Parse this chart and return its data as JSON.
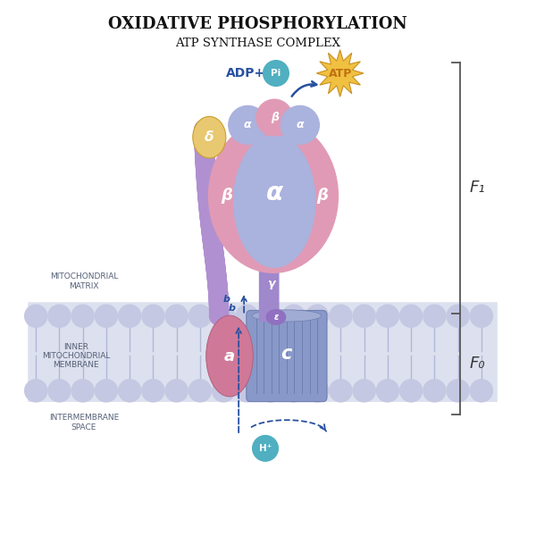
{
  "title1": "OXIDATIVE PHOSPHORYLATION",
  "title2": "ATP SYNTHASE COMPLEX",
  "bg_color": "#ffffff",
  "membrane_color": "#dde0ee",
  "membrane_bubble_color": "#c5c8e2",
  "f1_label": "F₁",
  "f0_label": "F₀",
  "labels": {
    "alpha_main": "α",
    "beta_left": "β",
    "beta_right": "β",
    "alpha_top_left": "α",
    "alpha_top_right": "α",
    "beta_top": "β",
    "delta": "δ",
    "gamma": "γ",
    "epsilon": "ε",
    "a_subunit": "a",
    "b_subunit": "b",
    "c_subunit": "c",
    "mito_matrix": "MITOCHONDRIAL\nMATRIX",
    "inner_membrane": "INNER\nMITOCHONDRIAL\nMEMBRANE",
    "intermembrane": "INTERMEMBRANE\nSPACE"
  },
  "colors": {
    "alpha_blue": "#aab2de",
    "pink_outer": "#e09ab5",
    "delta_gold": "#e8c870",
    "stalk_purple": "#b090d0",
    "c_ring_blue": "#8898c8",
    "c_ring_dark": "#7080b0",
    "a_subunit_pink": "#d07898",
    "gamma_purple": "#9878c8",
    "epsilon_small": "#9070c0",
    "adp_text": "#2850a0",
    "pi_circle": "#50afc0",
    "atp_text": "#c07010",
    "atp_star": "#f0c040",
    "h_circle": "#50afc0",
    "arrow_color": "#2850a0",
    "bracket_color": "#555555"
  }
}
